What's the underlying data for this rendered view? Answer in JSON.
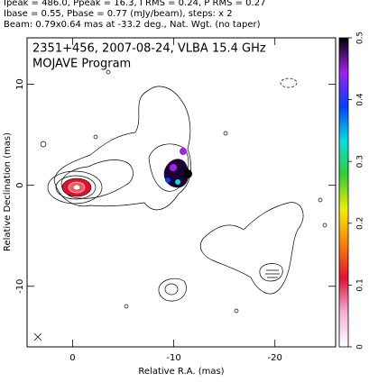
{
  "header": {
    "lines": [
      "Ipeak = 486.0, Ppeak = 16.3, I RMS = 0.24, P RMS = 0.27",
      "Ibase = 0.55, Pbase = 0.77 (mJy/beam), steps: x 2",
      "Beam: 0.79x0.64 mas at -33.2 deg., Nat. Wgt. (no taper)"
    ]
  },
  "chart_data": {
    "type": "contour",
    "title": "2351+456, 2007-08-24, VLBA 15.4 GHz",
    "subtitle": "MOJAVE Program",
    "x_label": "Relative R.A. (mas)",
    "y_label": "Relative Declination (mas)",
    "xlim": [
      4.5,
      -26
    ],
    "xticks": [
      0,
      -10,
      -20
    ],
    "ylim": [
      -16,
      14.6
    ],
    "yticks": [
      -10,
      0,
      10
    ],
    "clim": [
      0,
      0.5
    ],
    "cticks": [
      0,
      0.1,
      0.2,
      0.3,
      0.4,
      0.5
    ],
    "colormap": [
      "#ffffff",
      "#f4b0d8",
      "#e01030",
      "#ff8000",
      "#f0f000",
      "#30d030",
      "#00e0e0",
      "#0040ff",
      "#a020f0",
      "#000000"
    ]
  }
}
